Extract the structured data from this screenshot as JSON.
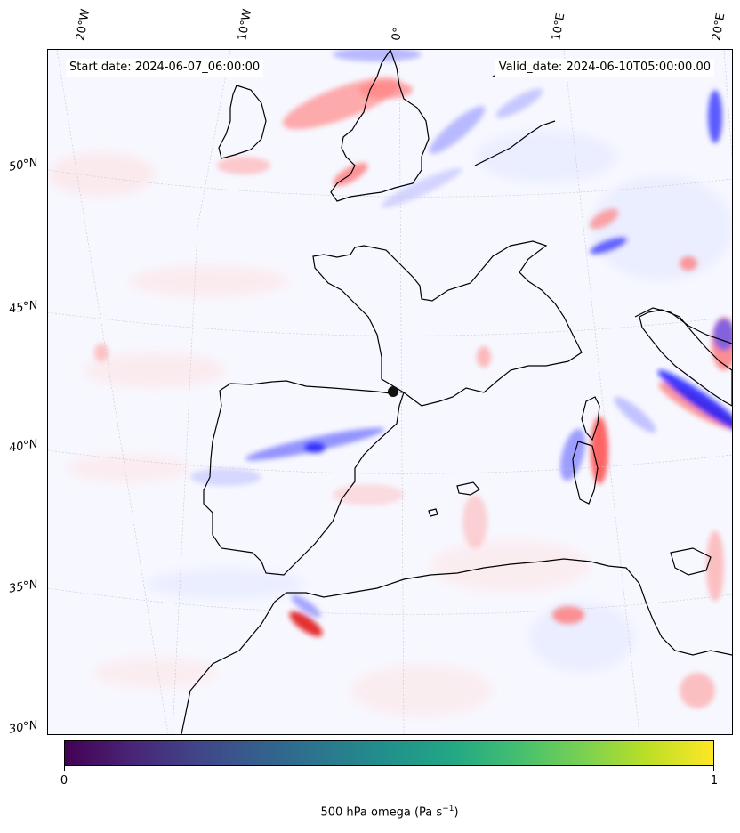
{
  "header": {
    "start_date": "Start date: 2024-06-07_06:00:00",
    "valid_date": "Valid_date: 2024-06-10T05:00:00.00"
  },
  "lon_ticks": [
    "20°W",
    "10°W",
    "0°",
    "10°E",
    "20°E"
  ],
  "lat_ticks": [
    "50°N",
    "45°N",
    "40°N",
    "35°N",
    "30°N"
  ],
  "colorbar": {
    "min_label": "0",
    "max_label": "1",
    "title_main": "500 hPa omega (Pa s",
    "title_exp": "−1",
    "title_end": ")"
  },
  "colors": {
    "positive": "#ff0000",
    "negative": "#0000ff",
    "coastline": "#000000"
  }
}
